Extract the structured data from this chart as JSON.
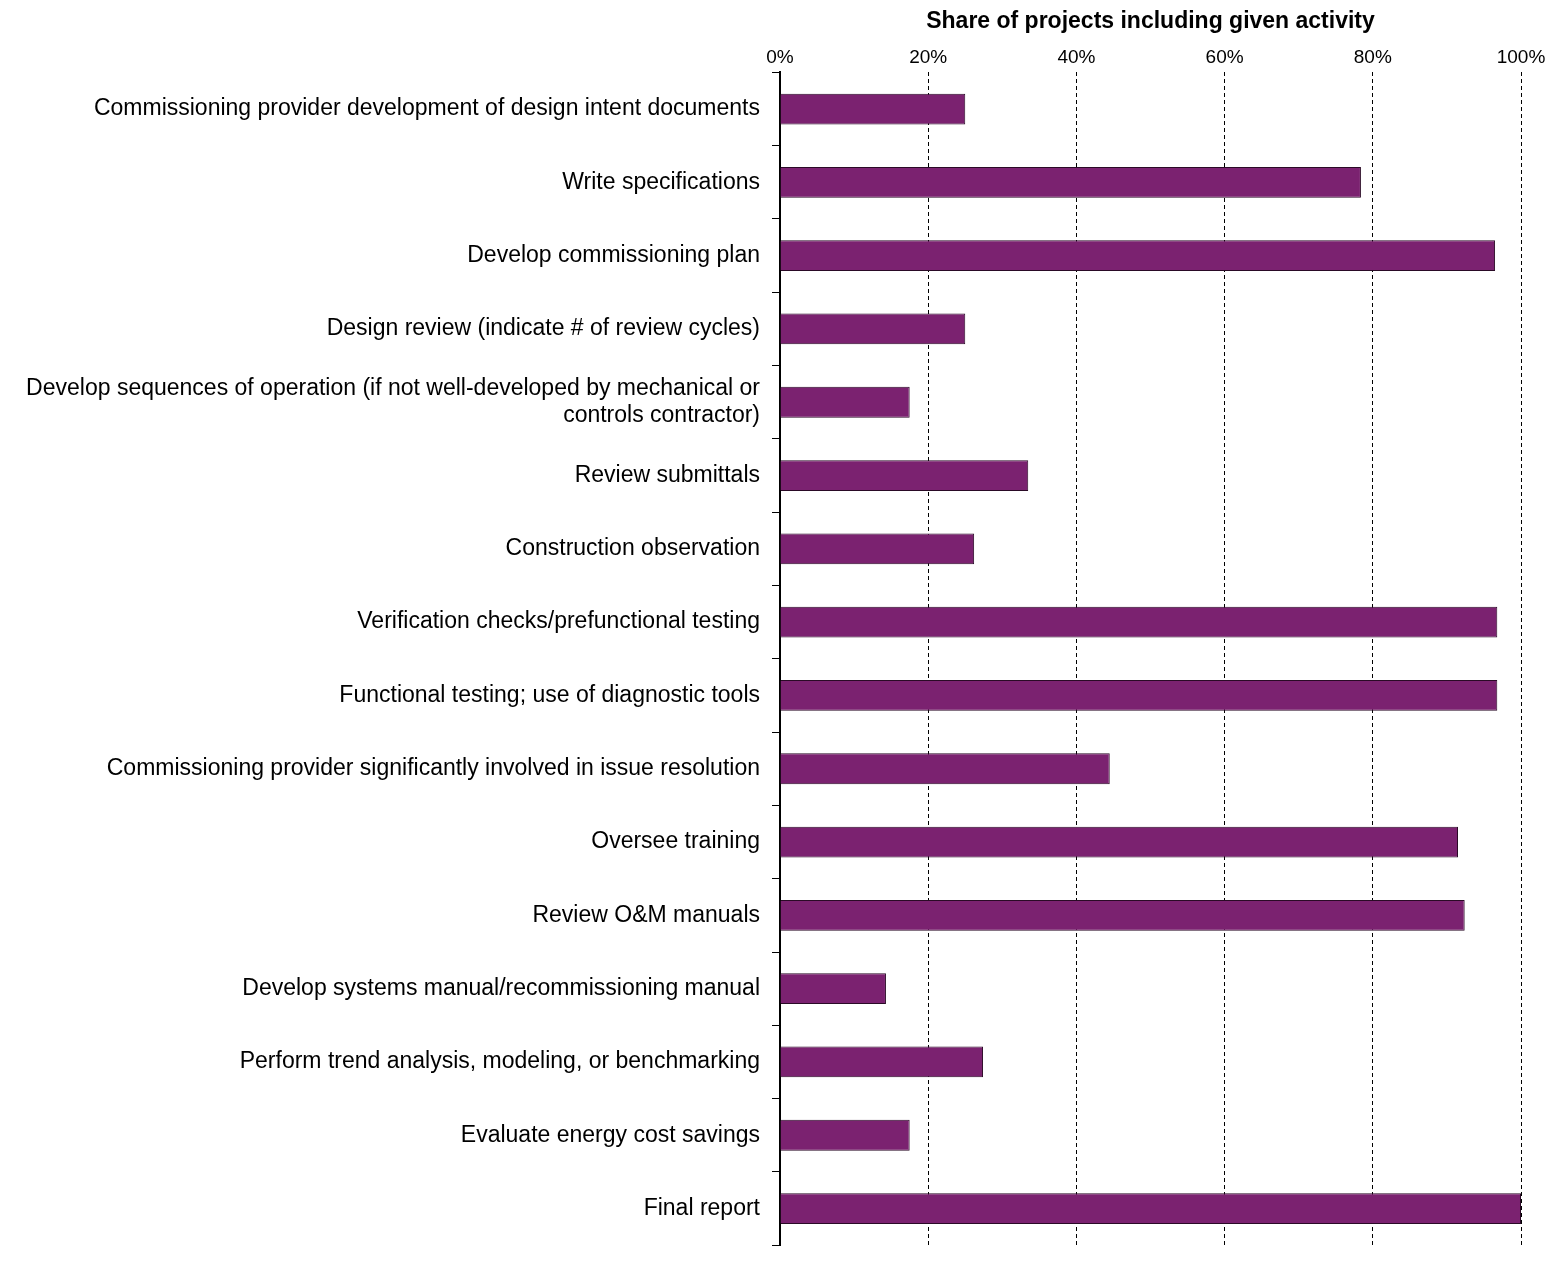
{
  "chart_data": {
    "type": "bar",
    "orientation": "horizontal",
    "xlabel": "Share of projects including given activity",
    "categories": [
      "Commissioning provider development of design intent documents",
      "Write specifications",
      "Develop commissioning plan",
      "Design review (indicate # of review cycles)",
      "Develop sequences of operation (if not well-developed by mechanical or controls contractor)",
      "Review submittals",
      "Construction observation",
      "Verification checks/prefunctional testing",
      "Functional testing; use of diagnostic tools",
      "Commissioning provider significantly involved in issue resolution",
      "Oversee training",
      "Review O&M manuals",
      "Develop systems manual/recommissioning manual",
      "Perform trend analysis, modeling, or benchmarking",
      "Evaluate energy cost savings",
      "Final report"
    ],
    "values": [
      25,
      78.4,
      96.5,
      25,
      17.5,
      33.5,
      26.2,
      96.8,
      96.8,
      44.5,
      91.5,
      92.4,
      14.3,
      27.4,
      17.5,
      100
    ],
    "color": "#7b2270",
    "xlim": [
      0,
      100
    ],
    "xticks": [
      {
        "value": 0,
        "label": "0%"
      },
      {
        "value": 20,
        "label": "20%"
      },
      {
        "value": 40,
        "label": "40%"
      },
      {
        "value": 60,
        "label": "60%"
      },
      {
        "value": 80,
        "label": "80%"
      },
      {
        "value": 100,
        "label": "100%"
      }
    ],
    "grid": "x",
    "legend": false
  }
}
